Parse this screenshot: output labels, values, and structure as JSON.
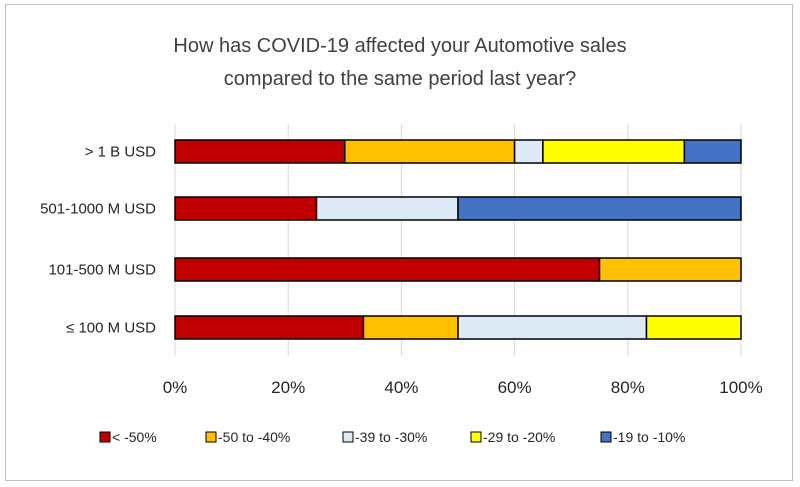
{
  "chart_data": {
    "type": "bar",
    "orientation": "horizontal",
    "stacked": "percent",
    "title_lines": [
      "How has COVID-19 affected your Automotive  sales",
      "compared to the same period last year?"
    ],
    "categories": [
      "> 1 B USD",
      "501-1000 M USD",
      "101-500 M USD",
      "≤ 100 M USD"
    ],
    "series": [
      {
        "name": "<  -50%",
        "color": "#c00000",
        "values": [
          30,
          25,
          75,
          33.3
        ]
      },
      {
        "name": "-50 to -40%",
        "color": "#ffc000",
        "values": [
          30,
          0,
          25,
          16.7
        ]
      },
      {
        "name": "-39 to -30%",
        "color": "#deebf7",
        "values": [
          5,
          25,
          0,
          33.3
        ]
      },
      {
        "name": "-29 to -20%",
        "color": "#ffff00",
        "values": [
          25,
          0,
          0,
          16.7
        ]
      },
      {
        "name": "-19 to -10%",
        "color": "#4472c4",
        "values": [
          10,
          50,
          0,
          0
        ]
      }
    ],
    "x_ticks": [
      "0%",
      "20%",
      "40%",
      "60%",
      "80%",
      "100%"
    ],
    "xlim": [
      0,
      100
    ],
    "grid": true,
    "legend": "bottom"
  }
}
